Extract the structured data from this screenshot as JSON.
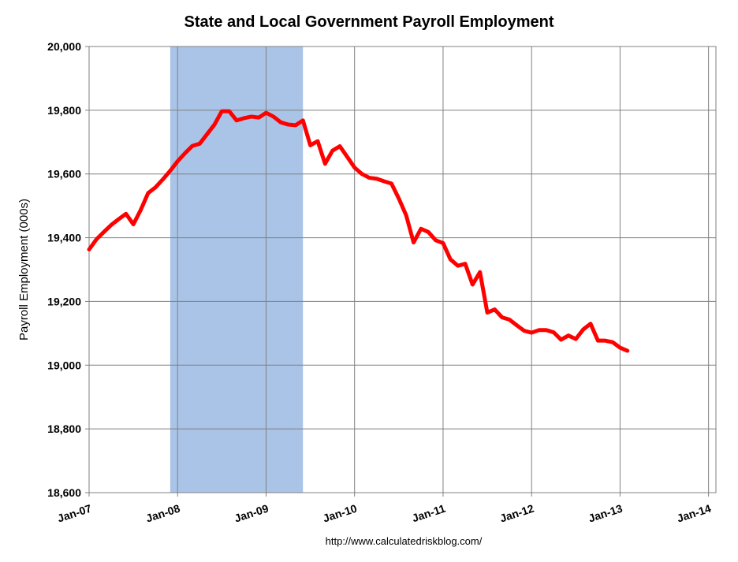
{
  "chart_data": {
    "type": "line",
    "title": "State and Local Government Payroll Employment",
    "ylabel": "Payroll Employment (000s)",
    "xlabel": "",
    "source": "http://www.calculatedriskblog.com/",
    "ylim": [
      18600,
      20000
    ],
    "y_ticks": [
      "18,600",
      "18,800",
      "19,000",
      "19,200",
      "19,400",
      "19,600",
      "19,800",
      "20,000"
    ],
    "y_tick_values": [
      18600,
      18800,
      19000,
      19200,
      19400,
      19600,
      19800,
      20000
    ],
    "x_ticks": [
      "Jan-07",
      "Jan-08",
      "Jan-09",
      "Jan-10",
      "Jan-11",
      "Jan-12",
      "Jan-13",
      "Jan-14"
    ],
    "xlim": [
      "2007-01",
      "2014-02"
    ],
    "grid": true,
    "recession_shading": {
      "start": "2007-12",
      "end": "2009-06",
      "color": "#aac4e8"
    },
    "series": [
      {
        "color": "#ff0000",
        "x": [
          "2007-01",
          "2007-02",
          "2007-03",
          "2007-04",
          "2007-05",
          "2007-06",
          "2007-07",
          "2007-08",
          "2007-09",
          "2007-10",
          "2007-11",
          "2007-12",
          "2008-01",
          "2008-02",
          "2008-03",
          "2008-04",
          "2008-05",
          "2008-06",
          "2008-07",
          "2008-08",
          "2008-09",
          "2008-10",
          "2008-11",
          "2008-12",
          "2009-01",
          "2009-02",
          "2009-03",
          "2009-04",
          "2009-05",
          "2009-06",
          "2009-07",
          "2009-08",
          "2009-09",
          "2009-10",
          "2009-11",
          "2009-12",
          "2010-01",
          "2010-02",
          "2010-03",
          "2010-04",
          "2010-05",
          "2010-06",
          "2010-07",
          "2010-08",
          "2010-09",
          "2010-10",
          "2010-11",
          "2010-12",
          "2011-01",
          "2011-02",
          "2011-03",
          "2011-04",
          "2011-05",
          "2011-06",
          "2011-07",
          "2011-08",
          "2011-09",
          "2011-10",
          "2011-11",
          "2011-12",
          "2012-01",
          "2012-02",
          "2012-03",
          "2012-04",
          "2012-05",
          "2012-06",
          "2012-07",
          "2012-08",
          "2012-09",
          "2012-10",
          "2012-11",
          "2012-12",
          "2013-01",
          "2013-02"
        ],
        "values": [
          19363,
          19395,
          19418,
          19440,
          19458,
          19475,
          19442,
          19487,
          19540,
          19558,
          19583,
          19610,
          19640,
          19665,
          19688,
          19695,
          19725,
          19755,
          19797,
          19797,
          19768,
          19775,
          19780,
          19777,
          19792,
          19780,
          19762,
          19755,
          19753,
          19768,
          19690,
          19703,
          19632,
          19673,
          19687,
          19654,
          19620,
          19600,
          19588,
          19585,
          19577,
          19570,
          19523,
          19470,
          19385,
          19428,
          19418,
          19392,
          19383,
          19332,
          19312,
          19318,
          19253,
          19292,
          19165,
          19175,
          19150,
          19143,
          19125,
          19108,
          19102,
          19110,
          19110,
          19103,
          19080,
          19093,
          19082,
          19112,
          19130,
          19077,
          19077,
          19072,
          19055,
          19045
        ]
      }
    ]
  }
}
